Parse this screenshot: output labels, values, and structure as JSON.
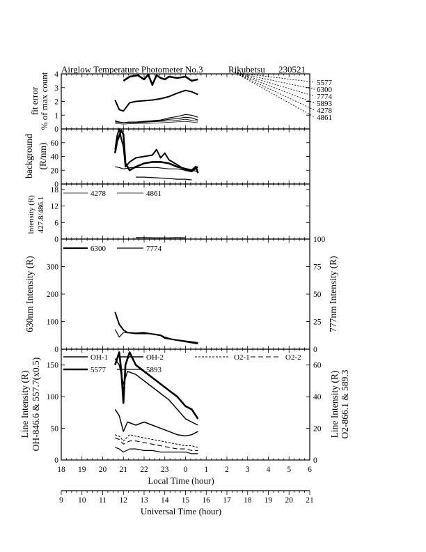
{
  "title": "Airglow Temperature Photometer No.3",
  "station": "Rikubetsu",
  "date_code": "230521",
  "wavelength_key": [
    "5577",
    "6300",
    "7774",
    "5893",
    "4278",
    "4861"
  ],
  "axes": {
    "local_time_label": "Local Time (hour)",
    "local_time_ticks": [
      "18",
      "19",
      "20",
      "21",
      "22",
      "23",
      "0",
      "1",
      "2",
      "3",
      "4",
      "5",
      "6"
    ],
    "ut_label": "Universal Time (hour)",
    "ut_ticks": [
      "9",
      "10",
      "11",
      "12",
      "13",
      "14",
      "15",
      "16",
      "17",
      "18",
      "19",
      "20",
      "21"
    ]
  },
  "chart_data": [
    {
      "type": "line",
      "panel": "fit error",
      "ylabel": [
        "fit error",
        "% of max count"
      ],
      "ylim": [
        0,
        4
      ],
      "yticks": [
        "0",
        "1",
        "2",
        "3",
        "4"
      ],
      "x_unit": "UT hour",
      "series": [
        {
          "name": "5577",
          "x": [
            12.0,
            12.3,
            12.7,
            13.0,
            13.2,
            13.4,
            13.6,
            13.8,
            14.0,
            14.2,
            14.6,
            15.0,
            15.3,
            15.6
          ],
          "values": [
            3.5,
            3.8,
            3.9,
            3.6,
            3.95,
            3.2,
            3.9,
            3.7,
            3.6,
            3.8,
            3.7,
            3.8,
            3.5,
            3.6
          ]
        },
        {
          "name": "6300",
          "x": [
            11.6,
            11.8,
            12.0,
            12.3,
            12.6,
            13.0,
            13.4,
            13.8,
            14.2,
            14.6,
            15.0,
            15.3,
            15.6
          ],
          "values": [
            2.1,
            1.4,
            1.3,
            1.9,
            2.0,
            2.05,
            2.1,
            2.2,
            2.35,
            2.6,
            2.8,
            2.7,
            2.5
          ]
        },
        {
          "name": "7774",
          "x": [
            11.6,
            11.8,
            12.0,
            12.3,
            12.6,
            13.0,
            13.4,
            13.8,
            14.2,
            14.6,
            15.0,
            15.3,
            15.6
          ],
          "values": [
            0.6,
            0.5,
            0.45,
            0.5,
            0.5,
            0.55,
            0.6,
            0.65,
            0.8,
            0.9,
            1.05,
            1.0,
            0.85
          ]
        },
        {
          "name": "5893",
          "x": [
            11.6,
            11.8,
            12.0,
            12.3,
            12.6,
            13.0,
            13.4,
            13.8,
            14.2,
            14.6,
            15.0,
            15.3,
            15.6
          ],
          "values": [
            0.55,
            0.5,
            0.45,
            0.5,
            0.5,
            0.5,
            0.55,
            0.6,
            0.7,
            0.75,
            0.85,
            0.8,
            0.65
          ]
        },
        {
          "name": "4278",
          "x": [
            11.6,
            12.0,
            12.6,
            13.2,
            13.8,
            14.4,
            15.0,
            15.6
          ],
          "values": [
            0.5,
            0.45,
            0.45,
            0.5,
            0.55,
            0.6,
            0.7,
            0.55
          ]
        },
        {
          "name": "4861",
          "x": [
            11.6,
            12.0,
            12.6,
            13.2,
            13.8,
            14.4,
            15.0,
            15.6
          ],
          "values": [
            0.4,
            0.35,
            0.4,
            0.4,
            0.45,
            0.5,
            0.55,
            0.45
          ]
        }
      ]
    },
    {
      "type": "line",
      "panel": "background",
      "ylabel": [
        "background",
        "(R/nm)"
      ],
      "ylim": [
        0,
        80
      ],
      "yticks": [
        "0",
        "20",
        "40",
        "60"
      ],
      "x_unit": "UT hour",
      "series": [
        {
          "name": "5577",
          "x": [
            11.6,
            11.7,
            11.8,
            11.9,
            12.0,
            12.1,
            12.3,
            12.6,
            13.0,
            13.4,
            13.8,
            14.2,
            14.6,
            15.0,
            15.3,
            15.5,
            15.6
          ],
          "values": [
            45,
            62,
            70,
            78,
            72,
            30,
            20,
            25,
            30,
            32,
            32,
            30,
            25,
            22,
            20,
            25,
            16
          ]
        },
        {
          "name": "6300",
          "x": [
            11.6,
            11.7,
            11.8,
            11.9,
            12.0,
            12.1,
            12.3,
            12.6,
            13.0,
            13.4,
            13.6,
            13.8,
            14.0,
            14.2,
            14.6,
            15.0,
            15.3,
            15.6
          ],
          "values": [
            50,
            70,
            80,
            65,
            55,
            25,
            32,
            38,
            40,
            42,
            50,
            38,
            45,
            35,
            28,
            20,
            18,
            25
          ]
        },
        {
          "name": "7774",
          "x": [
            11.6,
            11.8,
            12.0,
            12.4,
            13.0,
            13.6,
            14.2,
            14.6,
            15.0,
            15.3,
            15.6
          ],
          "values": [
            25,
            24,
            22,
            24,
            24,
            24,
            22,
            22,
            20,
            20,
            18
          ]
        },
        {
          "name": "5893",
          "x": [
            12.6,
            13.0,
            13.6,
            14.2,
            14.6,
            15.0,
            15.3
          ],
          "values": [
            10,
            10,
            9,
            8,
            7,
            7,
            6
          ]
        }
      ]
    },
    {
      "type": "line",
      "panel": "blue intensity",
      "ylabel": [
        "Intensity (R)",
        "427.8/486.1"
      ],
      "ylim": [
        0,
        20
      ],
      "yticks": [
        "0",
        "6",
        "12",
        "18"
      ],
      "x_unit": "UT hour",
      "series": [
        {
          "name": "4278",
          "x": [
            12.6,
            13.0,
            13.6,
            14.2,
            14.6,
            15.0
          ],
          "values": [
            0.6,
            0.6,
            0.5,
            0.5,
            0.6,
            0.5
          ]
        },
        {
          "name": "4861",
          "x": [
            12.6,
            13.0,
            13.6,
            14.2,
            14.6,
            15.0
          ],
          "values": [
            0.3,
            0.3,
            0.3,
            0.3,
            0.3,
            0.3
          ]
        }
      ]
    },
    {
      "type": "line",
      "panel": "630/777",
      "ylabel_left": "630nm Intensity (R)",
      "ylabel_right": "777nm Intensity (R)",
      "ylim_left": [
        0,
        400
      ],
      "ylim_right": [
        0,
        100
      ],
      "yticks_left": [
        "0",
        "100",
        "200",
        "300"
      ],
      "yticks_right": [
        "0",
        "25",
        "50",
        "75",
        "100"
      ],
      "x_unit": "UT hour",
      "series": [
        {
          "name": "6300",
          "axis": "left",
          "x": [
            11.6,
            11.8,
            12.0,
            12.2,
            12.6,
            13.0,
            13.4,
            13.8,
            14.0,
            14.4,
            14.8,
            15.2,
            15.6
          ],
          "values": [
            135,
            90,
            70,
            60,
            58,
            60,
            55,
            50,
            40,
            35,
            30,
            25,
            20
          ]
        },
        {
          "name": "7774",
          "axis": "right",
          "x": [
            11.6,
            11.8,
            12.0,
            12.2,
            12.6,
            13.0,
            13.4,
            13.8,
            14.0,
            14.4,
            14.8,
            15.2,
            15.6
          ],
          "values": [
            18,
            11,
            15,
            15,
            14,
            14,
            14,
            13,
            11,
            9,
            8,
            7,
            6
          ]
        }
      ]
    },
    {
      "type": "line",
      "panel": "line intensity",
      "ylabel_left": [
        "Line Intensity (R)",
        "OH-846.6 & 557.7(x0.5)"
      ],
      "ylabel_right": [
        "Line Intensity (R)",
        "O2-866.1 & 589.3"
      ],
      "ylim_left": [
        0,
        175
      ],
      "ylim_right": [
        0,
        70
      ],
      "yticks_left": [
        "0",
        "50",
        "100",
        "150"
      ],
      "yticks_right": [
        "0",
        "20",
        "40",
        "60"
      ],
      "x_unit": "UT hour",
      "series": [
        {
          "name": "OH-1",
          "axis": "left",
          "x": [
            11.6,
            11.8,
            12.0,
            12.2,
            12.6,
            13.0,
            13.4,
            13.8,
            14.2,
            14.6,
            15.0,
            15.3,
            15.6
          ],
          "values": [
            80,
            70,
            45,
            60,
            55,
            60,
            55,
            50,
            45,
            40,
            38,
            40,
            45
          ]
        },
        {
          "name": "OH-2",
          "axis": "left",
          "x": [
            11.6,
            11.8,
            12.0,
            12.2,
            12.6,
            13.0,
            13.4,
            13.8,
            14.2,
            14.6,
            15.0,
            15.3,
            15.6
          ],
          "values": [
            160,
            150,
            120,
            140,
            135,
            125,
            115,
            105,
            95,
            80,
            65,
            60,
            55
          ]
        },
        {
          "name": "O2-1",
          "axis": "right",
          "x": [
            11.6,
            11.8,
            12.0,
            12.3,
            12.6,
            13.0,
            13.4,
            13.8,
            14.2,
            14.6,
            15.0,
            15.3,
            15.6
          ],
          "values": [
            16,
            15,
            12,
            16,
            15,
            14,
            13,
            12,
            11,
            10,
            9,
            9,
            8
          ]
        },
        {
          "name": "O2-2",
          "axis": "right",
          "x": [
            11.6,
            11.8,
            12.0,
            12.3,
            12.6,
            13.0,
            13.4,
            13.8,
            14.2,
            14.6,
            15.0,
            15.3,
            15.6
          ],
          "values": [
            14,
            13,
            10,
            12,
            12,
            11,
            10,
            9,
            8,
            7,
            7,
            6,
            6
          ]
        },
        {
          "name": "5577",
          "axis": "left",
          "x": [
            11.6,
            11.7,
            11.8,
            11.9,
            12.0,
            12.1,
            12.3,
            12.6,
            13.0,
            13.4,
            13.8,
            14.2,
            14.6,
            15.0,
            15.3,
            15.6
          ],
          "values": [
            150,
            160,
            170,
            140,
            90,
            150,
            170,
            150,
            140,
            130,
            120,
            110,
            100,
            85,
            80,
            65
          ]
        },
        {
          "name": "5893",
          "axis": "right",
          "x": [
            11.6,
            11.8,
            12.0,
            12.3,
            12.6,
            13.0,
            13.4,
            13.8,
            14.2,
            14.6,
            15.0,
            15.3,
            15.6
          ],
          "values": [
            8,
            7,
            5,
            7,
            7,
            6,
            6,
            5,
            5,
            5,
            5,
            4,
            4
          ]
        }
      ]
    }
  ]
}
